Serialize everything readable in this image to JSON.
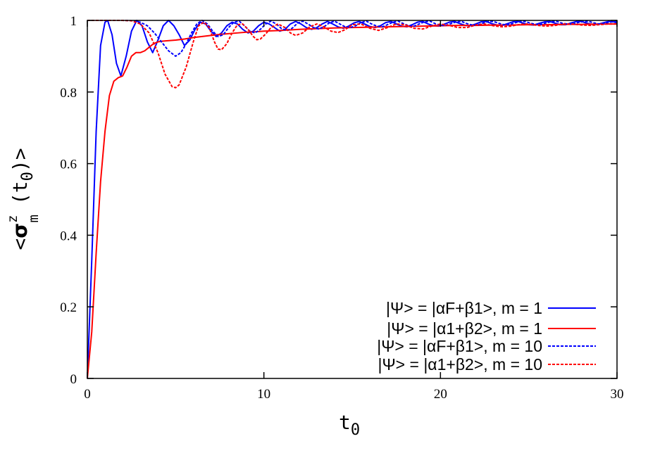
{
  "chart_data": {
    "type": "line",
    "xlabel": "t",
    "xlabel_sub": "0",
    "ylabel": {
      "open": "<",
      "symbol": "σ",
      "sup": "z",
      "sub": "m",
      "arg": "(t",
      "arg_sub": "0",
      "close": ")>"
    },
    "xlim": [
      0,
      30
    ],
    "ylim": [
      0,
      1
    ],
    "xticks": [
      "0",
      "10",
      "20",
      "30"
    ],
    "yticks": [
      "0",
      "0.2",
      "0.4",
      "0.6",
      "0.8",
      "1"
    ],
    "grid": false,
    "legend_position": "bottom-right",
    "series": [
      {
        "name": "|Ψ> = |αF+β1>, m = 1",
        "color": "#0000ff",
        "dash": "solid",
        "x": [
          0,
          0.25,
          0.5,
          0.75,
          1.0,
          1.15,
          1.4,
          1.65,
          1.9,
          2.2,
          2.5,
          2.8,
          3.1,
          3.4,
          3.7,
          4.0,
          4.3,
          4.6,
          4.9,
          5.2,
          5.5,
          5.8,
          6.1,
          6.4,
          6.7,
          7.0,
          7.3,
          7.6,
          7.9,
          8.2,
          8.5,
          8.8,
          9.1,
          9.4,
          9.7,
          10.0,
          10.3,
          10.6,
          10.9,
          11.2,
          11.5,
          11.8,
          12.1,
          12.4,
          12.7,
          13.0,
          13.3,
          13.6,
          13.9,
          14.2,
          14.5,
          14.8,
          15.1,
          15.4,
          15.7,
          16.0,
          16.3,
          16.6,
          16.9,
          17.2,
          17.5,
          17.8,
          18.1,
          18.4,
          18.7,
          19.0,
          19.3,
          19.6,
          19.9,
          20.2,
          20.5,
          20.8,
          21.1,
          21.4,
          21.7,
          22.0,
          22.3,
          22.6,
          22.9,
          23.2,
          23.5,
          23.8,
          24.1,
          24.4,
          24.7,
          25.0,
          25.3,
          25.6,
          25.9,
          26.2,
          26.5,
          26.8,
          27.1,
          27.4,
          27.7,
          28.0,
          28.3,
          28.6,
          28.9,
          29.2,
          29.5,
          29.8,
          30.0
        ],
        "y": [
          0,
          0.33,
          0.69,
          0.93,
          0.995,
          1.0,
          0.96,
          0.88,
          0.845,
          0.9,
          0.97,
          1.0,
          0.985,
          0.94,
          0.91,
          0.945,
          0.985,
          1.0,
          0.985,
          0.96,
          0.93,
          0.945,
          0.975,
          0.995,
          0.99,
          0.97,
          0.955,
          0.965,
          0.985,
          0.995,
          0.99,
          0.975,
          0.965,
          0.97,
          0.985,
          0.995,
          0.99,
          0.98,
          0.97,
          0.975,
          0.99,
          0.997,
          0.99,
          0.98,
          0.975,
          0.98,
          0.99,
          0.997,
          0.99,
          0.982,
          0.978,
          0.984,
          0.993,
          0.997,
          0.99,
          0.983,
          0.98,
          0.985,
          0.994,
          0.997,
          0.99,
          0.984,
          0.982,
          0.988,
          0.995,
          0.997,
          0.99,
          0.985,
          0.984,
          0.989,
          0.995,
          0.997,
          0.991,
          0.986,
          0.985,
          0.99,
          0.996,
          0.997,
          0.991,
          0.987,
          0.986,
          0.991,
          0.996,
          0.997,
          0.992,
          0.988,
          0.987,
          0.992,
          0.996,
          0.997,
          0.992,
          0.988,
          0.988,
          0.993,
          0.997,
          0.997,
          0.992,
          0.989,
          0.989,
          0.993,
          0.997,
          0.996,
          0.993
        ]
      },
      {
        "name": "|Ψ> = |α1+β2>, m = 1",
        "color": "#ff0000",
        "dash": "solid",
        "x": [
          0,
          0.25,
          0.5,
          0.75,
          1.0,
          1.25,
          1.5,
          1.75,
          2.0,
          2.25,
          2.5,
          2.75,
          3.0,
          3.25,
          3.5,
          3.75,
          4.0,
          4.25,
          4.5,
          4.75,
          5.0,
          5.5,
          6.0,
          6.5,
          7.0,
          7.5,
          8.0,
          8.5,
          9.0,
          9.5,
          10.0,
          11.0,
          12.0,
          13.0,
          14.0,
          15.0,
          16.0,
          17.0,
          18.0,
          19.0,
          20.0,
          21.0,
          22.0,
          23.0,
          24.0,
          25.0,
          26.0,
          27.0,
          28.0,
          29.0,
          30.0
        ],
        "y": [
          0,
          0.13,
          0.35,
          0.55,
          0.69,
          0.79,
          0.83,
          0.84,
          0.845,
          0.87,
          0.9,
          0.91,
          0.91,
          0.915,
          0.925,
          0.935,
          0.94,
          0.942,
          0.943,
          0.944,
          0.945,
          0.948,
          0.952,
          0.955,
          0.958,
          0.961,
          0.963,
          0.965,
          0.967,
          0.968,
          0.97,
          0.972,
          0.975,
          0.977,
          0.979,
          0.98,
          0.981,
          0.982,
          0.983,
          0.984,
          0.985,
          0.986,
          0.986,
          0.987,
          0.987,
          0.988,
          0.988,
          0.989,
          0.989,
          0.99,
          0.99
        ]
      },
      {
        "name": "|Ψ> = |αF+β1>, m = 10",
        "color": "#0000ff",
        "dash": "4,2",
        "x": [
          0,
          1.0,
          2.0,
          2.6,
          3.0,
          3.4,
          3.8,
          4.2,
          4.6,
          5.0,
          5.3,
          5.6,
          5.9,
          6.2,
          6.5,
          6.8,
          7.1,
          7.4,
          7.7,
          8.0,
          8.3,
          8.6,
          8.9,
          9.2,
          9.5,
          9.8,
          10.1,
          10.4,
          10.7,
          11.0,
          11.3,
          11.6,
          11.9,
          12.2,
          12.5,
          12.8,
          13.1,
          13.4,
          13.7,
          14.0,
          14.3,
          14.6,
          14.9,
          15.2,
          15.5,
          15.8,
          16.1,
          16.4,
          16.7,
          17.0,
          17.3,
          17.6,
          17.9,
          18.2,
          18.5,
          18.8,
          19.1,
          19.4,
          19.7,
          20.0,
          20.3,
          20.6,
          20.9,
          21.2,
          21.5,
          21.8,
          22.1,
          22.4,
          22.7,
          23.0,
          23.3,
          23.6,
          23.9,
          24.2,
          24.5,
          24.8,
          25.1,
          25.4,
          25.7,
          26.0,
          26.3,
          26.6,
          26.9,
          27.2,
          27.5,
          27.8,
          28.1,
          28.4,
          28.7,
          29.0,
          29.3,
          29.6,
          30.0
        ],
        "y": [
          1.0,
          1.0,
          1.0,
          0.999,
          0.995,
          0.985,
          0.965,
          0.94,
          0.915,
          0.9,
          0.91,
          0.935,
          0.965,
          0.99,
          1.0,
          0.99,
          0.97,
          0.955,
          0.96,
          0.98,
          0.995,
          0.998,
          0.985,
          0.97,
          0.965,
          0.975,
          0.99,
          0.998,
          0.99,
          0.977,
          0.972,
          0.978,
          0.992,
          0.998,
          0.99,
          0.98,
          0.976,
          0.982,
          0.993,
          0.998,
          0.99,
          0.982,
          0.98,
          0.985,
          0.994,
          0.998,
          0.99,
          0.984,
          0.982,
          0.988,
          0.995,
          0.998,
          0.991,
          0.985,
          0.984,
          0.99,
          0.996,
          0.998,
          0.991,
          0.986,
          0.986,
          0.991,
          0.996,
          0.997,
          0.991,
          0.987,
          0.987,
          0.992,
          0.997,
          0.997,
          0.992,
          0.988,
          0.988,
          0.993,
          0.997,
          0.997,
          0.992,
          0.989,
          0.989,
          0.993,
          0.997,
          0.997,
          0.992,
          0.99,
          0.99,
          0.994,
          0.997,
          0.997,
          0.993,
          0.99,
          0.991,
          0.995,
          0.997
        ]
      },
      {
        "name": "|Ψ> = |α1+β2>, m = 10",
        "color": "#ff0000",
        "dash": "4,2",
        "x": [
          0,
          1.0,
          2.0,
          2.5,
          3.0,
          3.5,
          4.0,
          4.4,
          4.8,
          5.0,
          5.2,
          5.6,
          6.0,
          6.3,
          6.6,
          6.9,
          7.2,
          7.4,
          7.6,
          7.9,
          8.2,
          8.5,
          8.8,
          9.1,
          9.4,
          9.6,
          9.8,
          10.1,
          10.4,
          10.8,
          11.2,
          11.5,
          11.8,
          12.2,
          12.6,
          13.0,
          13.4,
          13.8,
          14.2,
          14.6,
          15.0,
          15.5,
          16.0,
          16.5,
          17.0,
          17.5,
          18.0,
          18.5,
          19.0,
          19.5,
          20.0,
          20.5,
          21.0,
          21.5,
          22.0,
          22.5,
          23.0,
          23.5,
          24.0,
          24.5,
          25.0,
          25.5,
          26.0,
          26.5,
          27.0,
          27.5,
          28.0,
          28.5,
          29.0,
          29.5,
          30.0
        ],
        "y": [
          1.0,
          1.0,
          1.0,
          0.999,
          0.99,
          0.965,
          0.91,
          0.85,
          0.815,
          0.812,
          0.82,
          0.87,
          0.94,
          0.985,
          0.995,
          0.98,
          0.94,
          0.92,
          0.918,
          0.935,
          0.965,
          0.988,
          0.99,
          0.975,
          0.955,
          0.946,
          0.948,
          0.962,
          0.98,
          0.99,
          0.98,
          0.965,
          0.958,
          0.965,
          0.982,
          0.99,
          0.982,
          0.97,
          0.966,
          0.974,
          0.988,
          0.99,
          0.978,
          0.972,
          0.98,
          0.99,
          0.988,
          0.978,
          0.976,
          0.984,
          0.99,
          0.986,
          0.98,
          0.98,
          0.987,
          0.99,
          0.985,
          0.982,
          0.984,
          0.989,
          0.99,
          0.986,
          0.984,
          0.986,
          0.99,
          0.99,
          0.987,
          0.986,
          0.988,
          0.99,
          0.99
        ]
      }
    ]
  }
}
